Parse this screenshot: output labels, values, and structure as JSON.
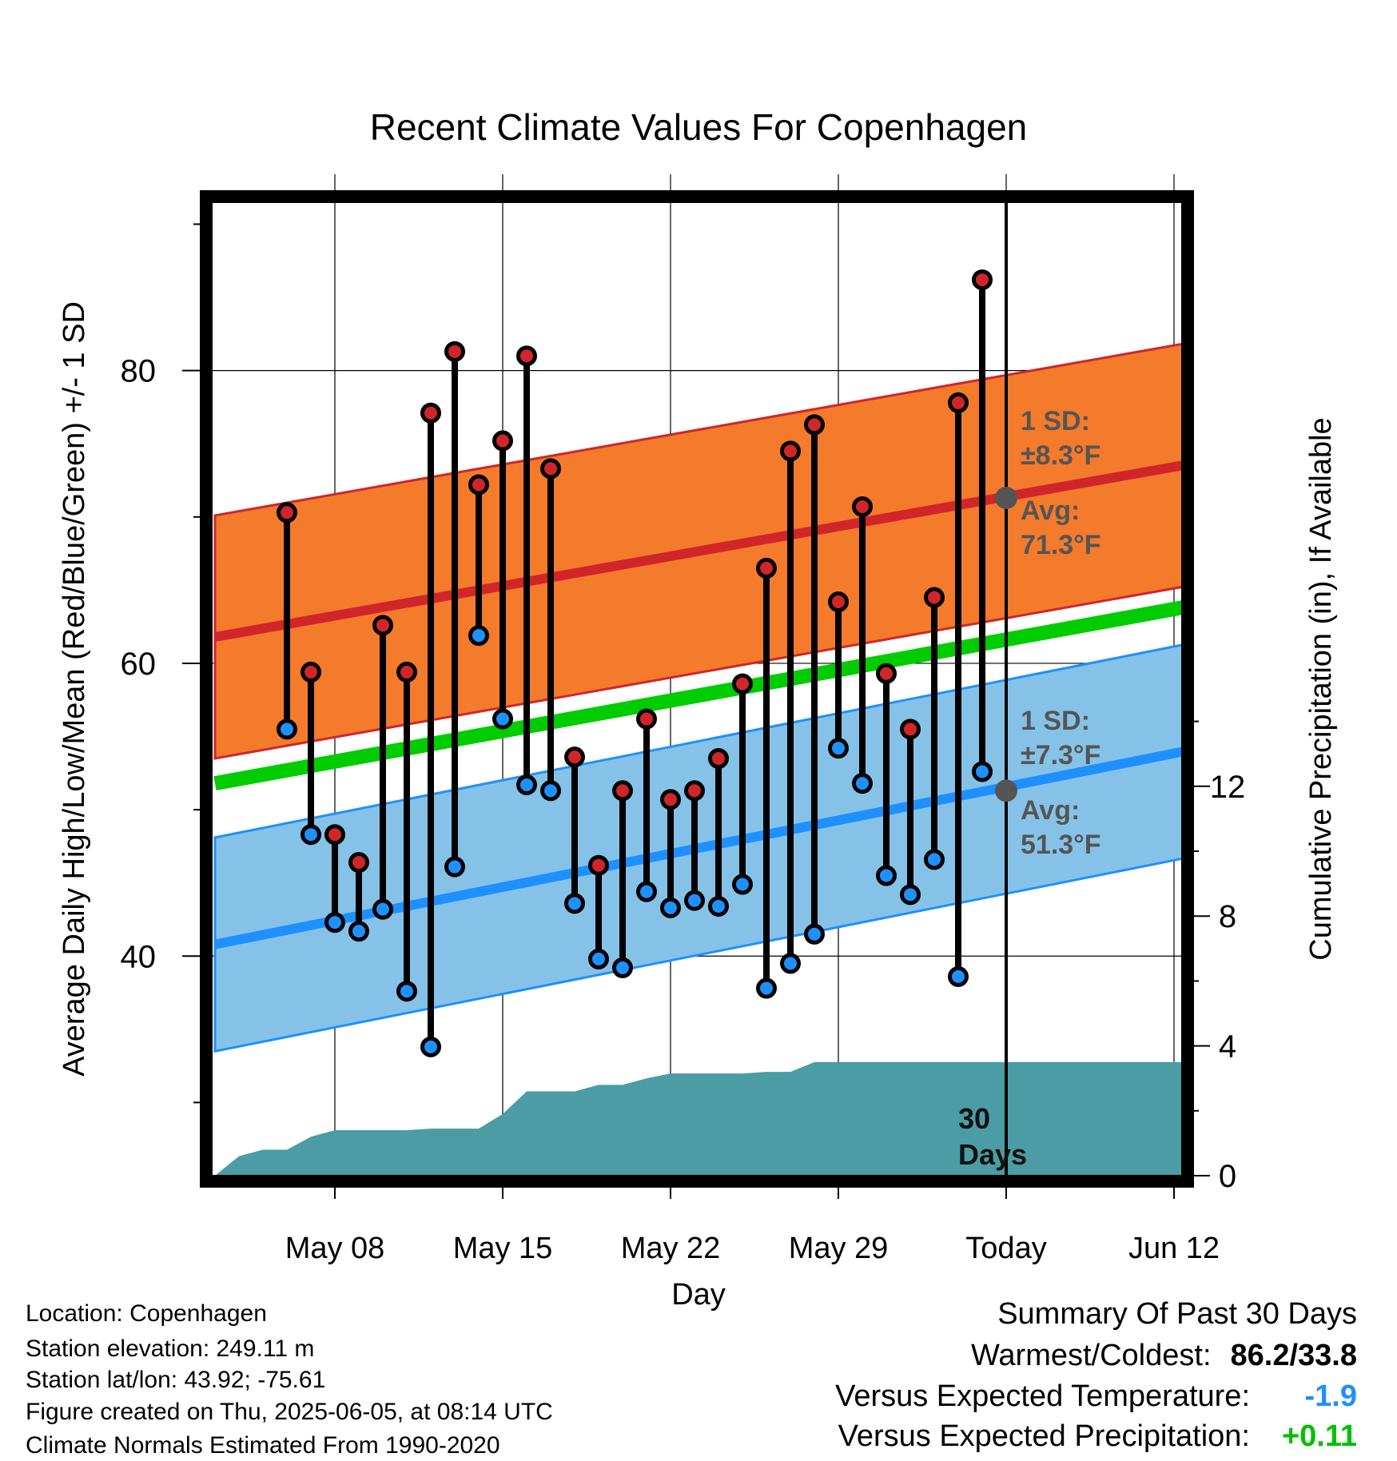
{
  "chart_data": {
    "type": "line",
    "title": "Recent Climate Values For Copenhagen",
    "xlabel": "Day",
    "ylabel": "Average Daily High/Low/Mean (Red/Blue/Green) +/- 1 SD",
    "y2label": "Cumulative Precipitation (in), If Available",
    "ylim": [
      25,
      91.5
    ],
    "y2lim": [
      0,
      30
    ],
    "y_ticks": [
      40,
      60,
      80
    ],
    "y2_ticks": [
      0,
      4,
      8,
      12
    ],
    "x_ticks": [
      {
        "day": 5,
        "label": "May 08"
      },
      {
        "day": 12,
        "label": "May 15"
      },
      {
        "day": 19,
        "label": "May 22"
      },
      {
        "day": 26,
        "label": "May 29"
      },
      {
        "day": 33,
        "label": "Today"
      },
      {
        "day": 40,
        "label": "Jun 12"
      }
    ],
    "grid": true,
    "normal_high": {
      "start": 61.8,
      "end": 74.0,
      "sd": 8.3
    },
    "normal_low": {
      "start": 40.8,
      "end": 54.5,
      "sd": 7.3
    },
    "normal_mean": {
      "start": 51.8,
      "end": 64.3
    },
    "high_label": {
      "sd": "1 SD:",
      "sd_value": "±8.3°F",
      "avg": "Avg:",
      "avg_value": "71.3°F"
    },
    "low_label": {
      "sd": "1 SD:",
      "sd_value": "±7.3°F",
      "avg": "Avg:",
      "avg_value": "51.3°F"
    },
    "today_markers": {
      "high": 71.3,
      "low": 51.3
    },
    "window_label": [
      "30",
      "Days"
    ],
    "series": [
      {
        "name": "High",
        "values": [
          70.3,
          59.4,
          48.3,
          46.4,
          62.6,
          59.4,
          77.1,
          81.3,
          72.2,
          75.2,
          81.0,
          73.3,
          53.6,
          46.2,
          51.3,
          56.2,
          50.7,
          51.3,
          53.5,
          58.6,
          66.5,
          74.5,
          76.3,
          64.2,
          70.7,
          59.3,
          55.5,
          64.5,
          77.8,
          86.2
        ]
      },
      {
        "name": "Low",
        "values": [
          55.5,
          48.3,
          42.3,
          41.7,
          43.2,
          37.6,
          33.8,
          46.1,
          61.9,
          56.2,
          51.7,
          51.3,
          43.6,
          39.8,
          39.2,
          44.4,
          43.3,
          43.8,
          43.4,
          44.9,
          37.8,
          39.5,
          41.5,
          54.2,
          51.8,
          45.5,
          44.2,
          46.6,
          38.6,
          52.6
        ]
      }
    ],
    "precip_cumulative": [
      0,
      0.6,
      0.8,
      0.8,
      1.2,
      1.4,
      1.4,
      1.4,
      1.4,
      1.45,
      1.45,
      1.45,
      1.9,
      2.6,
      2.6,
      2.6,
      2.8,
      2.8,
      3.0,
      3.15,
      3.15,
      3.15,
      3.15,
      3.2,
      3.2,
      3.5,
      3.5,
      3.5,
      3.5,
      3.5,
      3.5,
      3.5,
      3.5,
      3.5,
      3.5,
      3.5,
      3.5,
      3.5,
      3.5,
      3.5,
      3.5,
      3.5,
      3.5
    ]
  },
  "info": {
    "location": "Location: Copenhagen",
    "elevation": "Station elevation: 249.11 m",
    "latlon": "Station lat/lon: 43.92; -75.61",
    "created": "Figure created on Thu, 2025-06-05, at 08:14 UTC",
    "normals": "Climate Normals Estimated From 1990-2020"
  },
  "summary": {
    "title": "Summary Of Past 30 Days",
    "warmest_label": "Warmest/Coldest:",
    "warmest_value": "86.2/33.8",
    "temp_label": "Versus Expected Temperature:",
    "temp_value": "-1.9",
    "precip_label": "Versus Expected Precipitation:",
    "precip_value": "+0.11"
  },
  "colors": {
    "high_band": "#f47a2c",
    "low_band": "#86c2e8",
    "high_line": "#d0262a",
    "low_line": "#1e90ff",
    "mean_line": "#00cc00",
    "precip": "#4b9ca4",
    "high_dot": "#d0262a",
    "low_dot": "#1e90ff"
  }
}
